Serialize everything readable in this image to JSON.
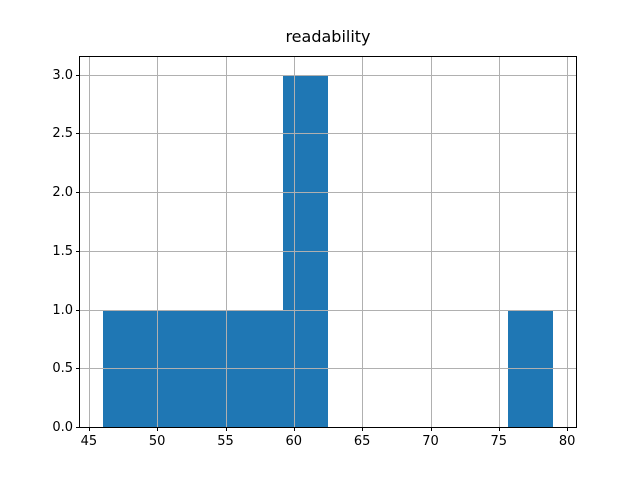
{
  "figure": {
    "background": "#ffffff"
  },
  "chart_data": {
    "type": "bar",
    "subtype": "histogram",
    "title": "readability",
    "xlabel": "",
    "ylabel": "",
    "bin_edges": [
      46.0,
      49.3,
      52.6,
      55.9,
      59.2,
      62.5,
      65.8,
      69.1,
      72.4,
      75.7,
      79.0
    ],
    "counts": [
      1,
      1,
      1,
      1,
      3,
      0,
      0,
      0,
      0,
      1
    ],
    "xlim": [
      44.35,
      80.65
    ],
    "ylim": [
      0,
      3.15
    ],
    "xticks": [
      {
        "value": 45,
        "label": "45"
      },
      {
        "value": 50,
        "label": "50"
      },
      {
        "value": 55,
        "label": "55"
      },
      {
        "value": 60,
        "label": "60"
      },
      {
        "value": 65,
        "label": "65"
      },
      {
        "value": 70,
        "label": "70"
      },
      {
        "value": 75,
        "label": "75"
      },
      {
        "value": 80,
        "label": "80"
      }
    ],
    "yticks": [
      {
        "value": 0.0,
        "label": "0.0"
      },
      {
        "value": 0.5,
        "label": "0.5"
      },
      {
        "value": 1.0,
        "label": "1.0"
      },
      {
        "value": 1.5,
        "label": "1.5"
      },
      {
        "value": 2.0,
        "label": "2.0"
      },
      {
        "value": 2.5,
        "label": "2.5"
      },
      {
        "value": 3.0,
        "label": "3.0"
      }
    ],
    "grid": true,
    "grid_axis": "both",
    "grid_above_bars": true,
    "legend": null,
    "bar_color": "#1f77b4",
    "grid_color": "#b0b0b0",
    "spine_color": "#000000",
    "text_color": "#000000"
  }
}
